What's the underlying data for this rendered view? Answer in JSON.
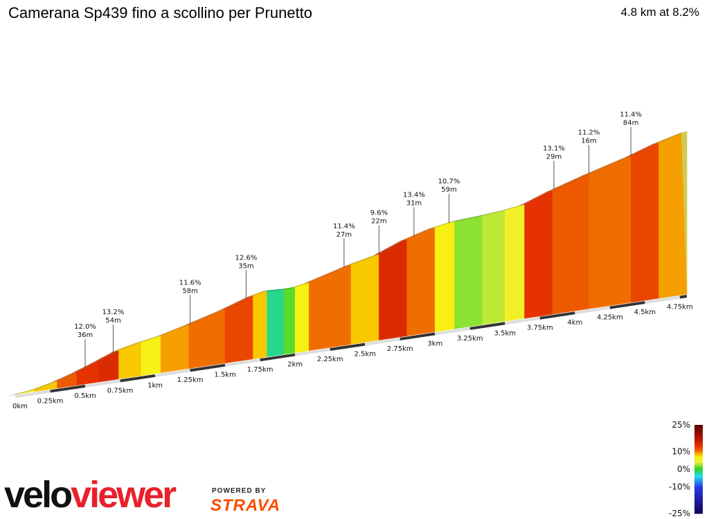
{
  "header": {
    "title": "Camerana Sp439 fino a scollino per Prunetto",
    "summary": "4.8 km at 8.2%"
  },
  "legend": {
    "labels": [
      "25%",
      "10%",
      "0%",
      "-10%",
      "-25%"
    ],
    "values": [
      25,
      10,
      0,
      -10,
      -25
    ]
  },
  "branding": {
    "logo_part1": "velo",
    "logo_part2": "viewer",
    "powered_by": "POWERED BY",
    "strava": "STRAVA"
  },
  "chart_data": {
    "type": "area",
    "title": "Camerana Sp439 fino a scollino per Prunetto",
    "distance_km": 4.8,
    "avg_gradient_pct": 8.2,
    "x_unit": "km",
    "x_ticks": [
      "0km",
      "0.25km",
      "0.5km",
      "0.75km",
      "1km",
      "1.25km",
      "1.5km",
      "1.75km",
      "2km",
      "2.25km",
      "2.5km",
      "2.75km",
      "3km",
      "3.25km",
      "3.5km",
      "3.75km",
      "4km",
      "4.25km",
      "4.5km",
      "4.75km"
    ],
    "x_tick_values": [
      0,
      0.25,
      0.5,
      0.75,
      1,
      1.25,
      1.5,
      1.75,
      2,
      2.25,
      2.5,
      2.75,
      3,
      3.25,
      3.5,
      3.75,
      4,
      4.25,
      4.5,
      4.75
    ],
    "segments": [
      {
        "to": 0.15,
        "grade": 4
      },
      {
        "to": 0.3,
        "grade": 8
      },
      {
        "to": 0.45,
        "grade": 11
      },
      {
        "to": 0.6,
        "grade": 13
      },
      {
        "to": 0.75,
        "grade": 14
      },
      {
        "to": 0.9,
        "grade": 8
      },
      {
        "to": 1.05,
        "grade": 6
      },
      {
        "to": 1.25,
        "grade": 9
      },
      {
        "to": 1.5,
        "grade": 10
      },
      {
        "to": 1.7,
        "grade": 12
      },
      {
        "to": 1.8,
        "grade": 8
      },
      {
        "to": 1.92,
        "grade": -2
      },
      {
        "to": 2.0,
        "grade": 1
      },
      {
        "to": 2.1,
        "grade": 6
      },
      {
        "to": 2.4,
        "grade": 10
      },
      {
        "to": 2.6,
        "grade": 8
      },
      {
        "to": 2.8,
        "grade": 14
      },
      {
        "to": 3.0,
        "grade": 10
      },
      {
        "to": 3.15,
        "grade": 6
      },
      {
        "to": 3.35,
        "grade": 2
      },
      {
        "to": 3.5,
        "grade": 3
      },
      {
        "to": 3.65,
        "grade": 5
      },
      {
        "to": 3.85,
        "grade": 13
      },
      {
        "to": 4.1,
        "grade": 11
      },
      {
        "to": 4.4,
        "grade": 10
      },
      {
        "to": 4.6,
        "grade": 12
      },
      {
        "to": 4.8,
        "grade": 9
      }
    ],
    "annotations": [
      {
        "x": 0.5,
        "grade": "12.0%",
        "length": "36m"
      },
      {
        "x": 0.7,
        "grade": "13.2%",
        "length": "54m"
      },
      {
        "x": 1.25,
        "grade": "11.6%",
        "length": "58m"
      },
      {
        "x": 1.65,
        "grade": "12.6%",
        "length": "35m"
      },
      {
        "x": 2.35,
        "grade": "11.4%",
        "length": "27m"
      },
      {
        "x": 2.6,
        "grade": "9.6%",
        "length": "22m"
      },
      {
        "x": 2.85,
        "grade": "13.4%",
        "length": "31m"
      },
      {
        "x": 3.1,
        "grade": "10.7%",
        "length": "59m"
      },
      {
        "x": 3.85,
        "grade": "13.1%",
        "length": "29m"
      },
      {
        "x": 4.1,
        "grade": "11.2%",
        "length": "16m"
      },
      {
        "x": 4.4,
        "grade": "11.4%",
        "length": "84m"
      }
    ]
  }
}
